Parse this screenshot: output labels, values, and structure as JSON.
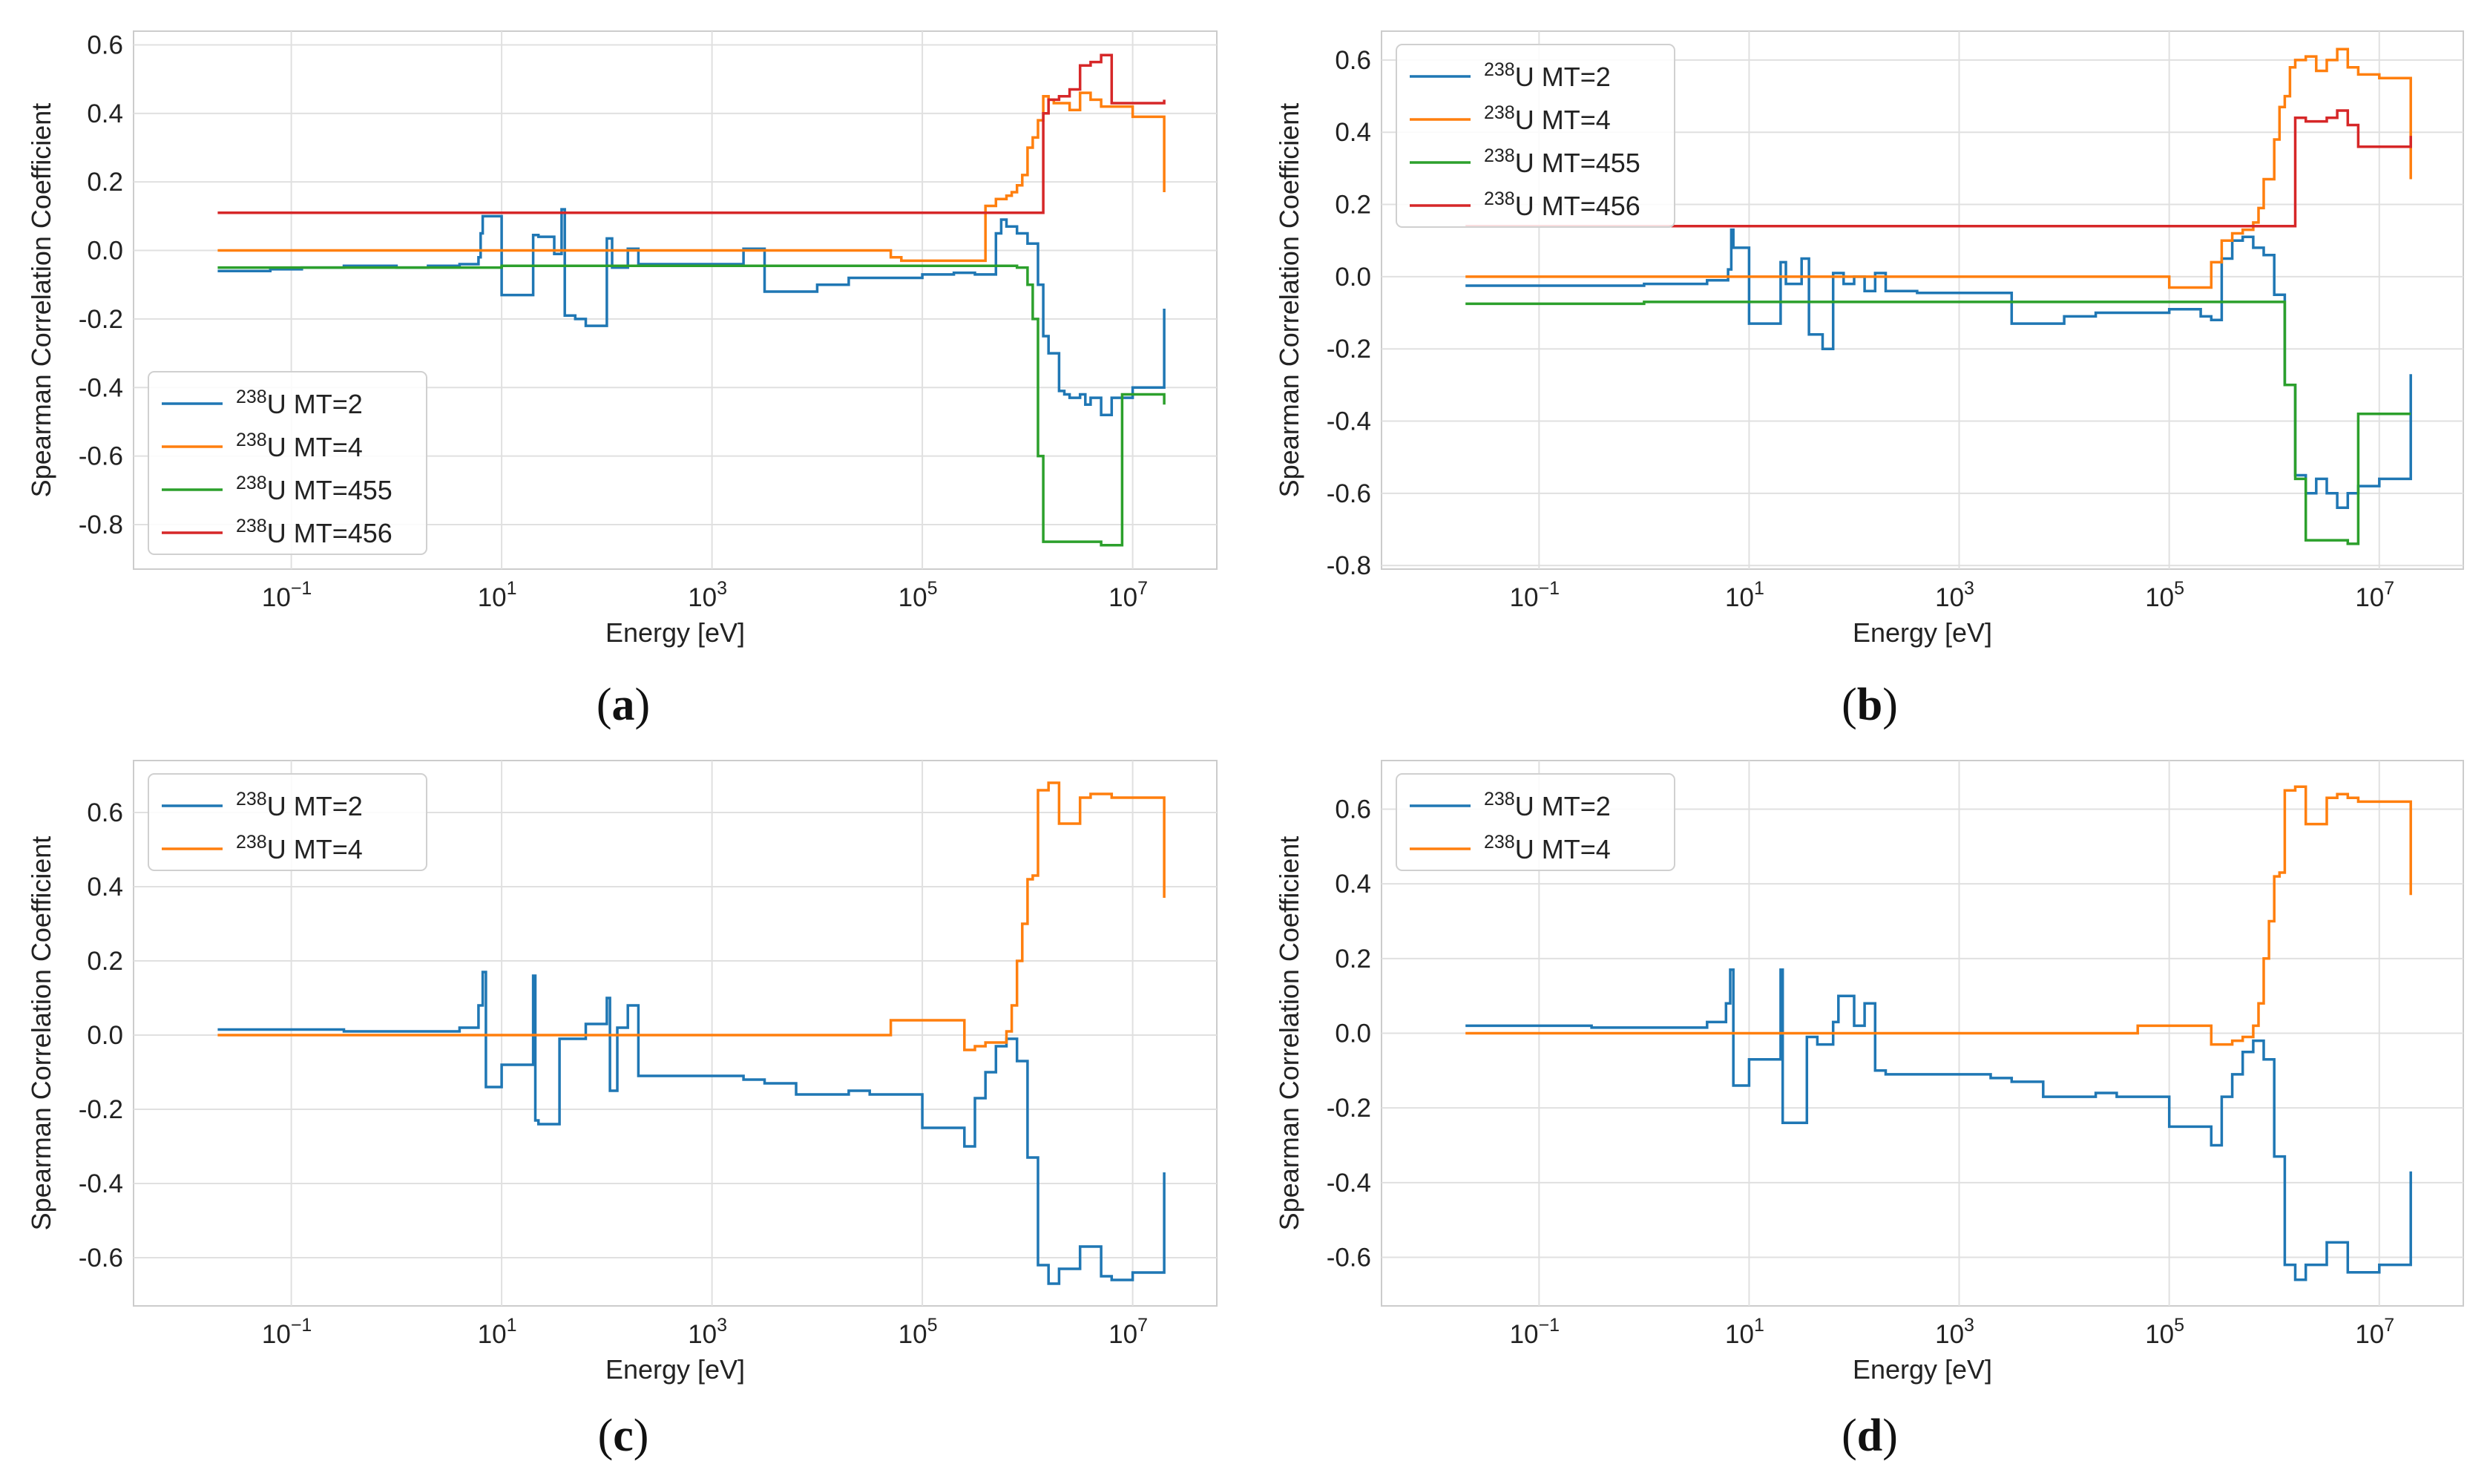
{
  "colors": {
    "blue": "#1f77b4",
    "orange": "#ff7f0e",
    "green": "#2ca02c",
    "red": "#d62728"
  },
  "chart_data": [
    {
      "type": "line",
      "caption": {
        "letter": "a"
      },
      "xlabel": "Energy [eV]",
      "ylabel": "Spearman Correlation Coefficient",
      "xscale": "log",
      "xlim_log10": [
        -2.5,
        7.8
      ],
      "ylim": [
        -0.93,
        0.64
      ],
      "yticks": [
        "0.6",
        "0.4",
        "0.2",
        "0.0",
        "-0.2",
        "-0.4",
        "-0.6",
        "-0.8"
      ],
      "xticks": [
        {
          "base": "10",
          "exp": "−1"
        },
        {
          "base": "10",
          "exp": "1"
        },
        {
          "base": "10",
          "exp": "3"
        },
        {
          "base": "10",
          "exp": "5"
        },
        {
          "base": "10",
          "exp": "7"
        }
      ],
      "legend": {
        "placement": "lower-left"
      },
      "series": [
        {
          "name": "MT=2",
          "iso": "238",
          "elem": "U",
          "color": "blue",
          "x_log10": [
            -1.7,
            -1.2,
            -0.9,
            -0.5,
            0,
            0.3,
            0.6,
            0.78,
            0.8,
            0.82,
            1.0,
            1.3,
            1.35,
            1.5,
            1.57,
            1.6,
            1.7,
            1.8,
            2.0,
            2.05,
            2.2,
            2.3,
            3.3,
            3.5,
            4.0,
            4.3,
            5.0,
            5.3,
            5.4,
            5.5,
            5.7,
            5.75,
            5.8,
            5.9,
            6.0,
            6.1,
            6.15,
            6.2,
            6.3,
            6.35,
            6.4,
            6.5,
            6.55,
            6.6,
            6.7,
            6.8,
            7.0,
            7.3
          ],
          "y": [
            -0.06,
            -0.055,
            -0.05,
            -0.045,
            -0.05,
            -0.045,
            -0.04,
            -0.02,
            0.05,
            0.1,
            -0.13,
            0.045,
            0.04,
            -0.01,
            0.12,
            -0.19,
            -0.2,
            -0.22,
            0.035,
            -0.05,
            0.005,
            -0.04,
            0.005,
            -0.12,
            -0.1,
            -0.08,
            -0.07,
            -0.065,
            -0.065,
            -0.07,
            0.05,
            0.09,
            0.07,
            0.05,
            0.02,
            -0.1,
            -0.25,
            -0.3,
            -0.41,
            -0.42,
            -0.43,
            -0.42,
            -0.45,
            -0.43,
            -0.48,
            -0.43,
            -0.4,
            -0.17
          ]
        },
        {
          "name": "MT=4",
          "iso": "238",
          "elem": "U",
          "color": "orange",
          "x_log10": [
            -1.7,
            4.7,
            4.8,
            5.1,
            5.5,
            5.6,
            5.7,
            5.8,
            5.85,
            5.9,
            5.95,
            6.0,
            6.05,
            6.1,
            6.15,
            6.2,
            6.25,
            6.3,
            6.4,
            6.5,
            6.6,
            6.7,
            6.8,
            7.0,
            7.3
          ],
          "y": [
            0,
            -0.02,
            -0.03,
            -0.03,
            -0.03,
            0.13,
            0.15,
            0.16,
            0.17,
            0.19,
            0.22,
            0.3,
            0.33,
            0.38,
            0.45,
            0.44,
            0.43,
            0.43,
            0.41,
            0.46,
            0.44,
            0.42,
            0.42,
            0.39,
            0.17
          ]
        },
        {
          "name": "MT=455",
          "iso": "238",
          "elem": "U",
          "color": "green",
          "x_log10": [
            -1.7,
            0.5,
            1.0,
            3.0,
            5.0,
            5.3,
            5.8,
            5.9,
            6.0,
            6.05,
            6.1,
            6.15,
            6.2,
            6.3,
            6.5,
            6.7,
            6.9,
            7.0,
            7.3
          ],
          "y": [
            -0.05,
            -0.05,
            -0.045,
            -0.045,
            -0.045,
            -0.045,
            -0.045,
            -0.05,
            -0.1,
            -0.2,
            -0.6,
            -0.85,
            -0.85,
            -0.85,
            -0.85,
            -0.86,
            -0.42,
            -0.42,
            -0.45
          ]
        },
        {
          "name": "MT=456",
          "iso": "238",
          "elem": "U",
          "color": "red",
          "x_log10": [
            -1.7,
            6.1,
            6.15,
            6.2,
            6.3,
            6.4,
            6.5,
            6.6,
            6.7,
            6.8,
            7.0,
            7.3
          ],
          "y": [
            0.11,
            0.11,
            0.4,
            0.44,
            0.45,
            0.47,
            0.54,
            0.55,
            0.57,
            0.43,
            0.43,
            0.44
          ]
        }
      ]
    },
    {
      "type": "line",
      "caption": {
        "letter": "b"
      },
      "xlabel": "Energy [eV]",
      "ylabel": "Spearman Correlation Coefficient",
      "xscale": "log",
      "xlim_log10": [
        -2.5,
        7.8
      ],
      "ylim": [
        -0.81,
        0.68
      ],
      "yticks": [
        "0.6",
        "0.4",
        "0.2",
        "0.0",
        "-0.2",
        "-0.4",
        "-0.6",
        "-0.8"
      ],
      "xticks": [
        {
          "base": "10",
          "exp": "−1"
        },
        {
          "base": "10",
          "exp": "1"
        },
        {
          "base": "10",
          "exp": "3"
        },
        {
          "base": "10",
          "exp": "5"
        },
        {
          "base": "10",
          "exp": "7"
        }
      ],
      "legend": {
        "placement": "upper-left"
      },
      "series": [
        {
          "name": "MT=2",
          "iso": "238",
          "elem": "U",
          "color": "blue",
          "x_log10": [
            -1.7,
            -1.0,
            0,
            0.3,
            0.6,
            0.8,
            0.83,
            0.85,
            1.0,
            1.3,
            1.35,
            1.5,
            1.57,
            1.65,
            1.7,
            1.8,
            1.9,
            2.0,
            2.1,
            2.2,
            2.3,
            2.6,
            3.5,
            4.0,
            4.3,
            5.0,
            5.2,
            5.3,
            5.4,
            5.5,
            5.6,
            5.7,
            5.8,
            5.9,
            6.0,
            6.1,
            6.2,
            6.3,
            6.4,
            6.5,
            6.6,
            6.7,
            6.8,
            7.0,
            7.3
          ],
          "y": [
            -0.025,
            -0.025,
            -0.02,
            -0.02,
            -0.01,
            0.02,
            0.13,
            0.08,
            -0.13,
            0.04,
            -0.02,
            0.05,
            -0.16,
            -0.16,
            -0.2,
            0.01,
            -0.02,
            0,
            -0.04,
            0.01,
            -0.04,
            -0.045,
            -0.13,
            -0.11,
            -0.1,
            -0.09,
            -0.09,
            -0.11,
            -0.12,
            0.05,
            0.1,
            0.11,
            0.08,
            0.06,
            -0.05,
            -0.3,
            -0.55,
            -0.6,
            -0.56,
            -0.6,
            -0.64,
            -0.6,
            -0.58,
            -0.56,
            -0.27
          ]
        },
        {
          "name": "MT=4",
          "iso": "238",
          "elem": "U",
          "color": "orange",
          "x_log10": [
            -1.7,
            4.7,
            5.0,
            5.3,
            5.4,
            5.5,
            5.6,
            5.7,
            5.8,
            5.85,
            5.9,
            6.0,
            6.05,
            6.1,
            6.15,
            6.2,
            6.3,
            6.4,
            6.5,
            6.6,
            6.7,
            6.8,
            7.0,
            7.3
          ],
          "y": [
            0,
            0,
            -0.03,
            -0.03,
            0.04,
            0.1,
            0.12,
            0.13,
            0.15,
            0.19,
            0.27,
            0.38,
            0.47,
            0.5,
            0.58,
            0.6,
            0.61,
            0.57,
            0.6,
            0.63,
            0.58,
            0.56,
            0.55,
            0.27
          ]
        },
        {
          "name": "MT=455",
          "iso": "238",
          "elem": "U",
          "color": "green",
          "x_log10": [
            -1.7,
            0,
            1.0,
            3.0,
            5.0,
            5.5,
            6.0,
            6.1,
            6.2,
            6.3,
            6.5,
            6.7,
            6.8,
            7.0,
            7.3
          ],
          "y": [
            -0.075,
            -0.07,
            -0.07,
            -0.07,
            -0.07,
            -0.07,
            -0.07,
            -0.3,
            -0.56,
            -0.73,
            -0.73,
            -0.74,
            -0.38,
            -0.38,
            -0.38
          ]
        },
        {
          "name": "MT=456",
          "iso": "238",
          "elem": "U",
          "color": "red",
          "x_log10": [
            -1.7,
            6.1,
            6.2,
            6.3,
            6.4,
            6.5,
            6.6,
            6.7,
            6.8,
            7.0,
            7.3
          ],
          "y": [
            0.14,
            0.14,
            0.44,
            0.43,
            0.43,
            0.44,
            0.46,
            0.42,
            0.36,
            0.36,
            0.39
          ]
        }
      ]
    },
    {
      "type": "line",
      "caption": {
        "letter": "c"
      },
      "xlabel": "Energy [eV]",
      "ylabel": "Spearman Correlation Coefficient",
      "xscale": "log",
      "xlim_log10": [
        -2.5,
        7.8
      ],
      "ylim": [
        -0.73,
        0.74
      ],
      "yticks": [
        "0.6",
        "0.4",
        "0.2",
        "0.0",
        "-0.2",
        "-0.4",
        "-0.6"
      ],
      "xticks": [
        {
          "base": "10",
          "exp": "−1"
        },
        {
          "base": "10",
          "exp": "1"
        },
        {
          "base": "10",
          "exp": "3"
        },
        {
          "base": "10",
          "exp": "5"
        },
        {
          "base": "10",
          "exp": "7"
        }
      ],
      "legend": {
        "placement": "upper-left"
      },
      "series": [
        {
          "name": "MT=2",
          "iso": "238",
          "elem": "U",
          "color": "blue",
          "x_log10": [
            -1.7,
            -0.5,
            0,
            0.6,
            0.78,
            0.82,
            0.85,
            1.0,
            1.3,
            1.32,
            1.35,
            1.55,
            1.6,
            1.8,
            2.0,
            2.03,
            2.1,
            2.2,
            2.3,
            3.3,
            3.5,
            3.8,
            4.3,
            4.5,
            5.0,
            5.3,
            5.4,
            5.5,
            5.6,
            5.7,
            5.8,
            5.9,
            6.0,
            6.1,
            6.2,
            6.3,
            6.5,
            6.7,
            6.8,
            7.0,
            7.3
          ],
          "y": [
            0.015,
            0.01,
            0.01,
            0.02,
            0.08,
            0.17,
            -0.14,
            -0.08,
            0.16,
            -0.23,
            -0.24,
            -0.01,
            -0.01,
            0.03,
            0.1,
            -0.15,
            0.02,
            0.08,
            -0.11,
            -0.12,
            -0.13,
            -0.16,
            -0.15,
            -0.16,
            -0.25,
            -0.25,
            -0.3,
            -0.17,
            -0.1,
            -0.03,
            -0.01,
            -0.07,
            -0.33,
            -0.62,
            -0.67,
            -0.63,
            -0.57,
            -0.65,
            -0.66,
            -0.64,
            -0.37
          ]
        },
        {
          "name": "MT=4",
          "iso": "238",
          "elem": "U",
          "color": "orange",
          "x_log10": [
            -1.7,
            4.7,
            5.3,
            5.4,
            5.5,
            5.6,
            5.7,
            5.8,
            5.85,
            5.9,
            5.95,
            6.0,
            6.05,
            6.1,
            6.2,
            6.3,
            6.5,
            6.6,
            6.7,
            6.8,
            7.0,
            7.3
          ],
          "y": [
            0,
            0.04,
            0.04,
            -0.04,
            -0.03,
            -0.02,
            -0.02,
            0.01,
            0.08,
            0.2,
            0.3,
            0.42,
            0.43,
            0.66,
            0.68,
            0.57,
            0.64,
            0.65,
            0.65,
            0.64,
            0.64,
            0.37
          ]
        }
      ]
    },
    {
      "type": "line",
      "caption": {
        "letter": "d"
      },
      "xlabel": "Energy [eV]",
      "ylabel": "Spearman Correlation Coefficient",
      "xscale": "log",
      "xlim_log10": [
        -2.5,
        7.8
      ],
      "ylim": [
        -0.73,
        0.73
      ],
      "yticks": [
        "0.6",
        "0.4",
        "0.2",
        "0.0",
        "-0.2",
        "-0.4",
        "-0.6"
      ],
      "xticks": [
        {
          "base": "10",
          "exp": "−1"
        },
        {
          "base": "10",
          "exp": "1"
        },
        {
          "base": "10",
          "exp": "3"
        },
        {
          "base": "10",
          "exp": "5"
        },
        {
          "base": "10",
          "exp": "7"
        }
      ],
      "legend": {
        "placement": "upper-left"
      },
      "series": [
        {
          "name": "MT=2",
          "iso": "238",
          "elem": "U",
          "color": "blue",
          "x_log10": [
            -1.7,
            -0.5,
            0,
            0.6,
            0.78,
            0.82,
            0.85,
            1.0,
            1.3,
            1.32,
            1.35,
            1.55,
            1.65,
            1.8,
            1.85,
            2.0,
            2.1,
            2.2,
            2.3,
            3.3,
            3.5,
            3.8,
            4.3,
            4.5,
            5.0,
            5.3,
            5.4,
            5.5,
            5.6,
            5.7,
            5.8,
            5.9,
            6.0,
            6.1,
            6.2,
            6.3,
            6.5,
            6.7,
            6.8,
            7.0,
            7.3
          ],
          "y": [
            0.02,
            0.015,
            0.015,
            0.03,
            0.08,
            0.17,
            -0.14,
            -0.07,
            0.17,
            -0.24,
            -0.24,
            -0.01,
            -0.03,
            0.03,
            0.1,
            0.02,
            0.08,
            -0.1,
            -0.11,
            -0.12,
            -0.13,
            -0.17,
            -0.16,
            -0.17,
            -0.25,
            -0.25,
            -0.3,
            -0.17,
            -0.11,
            -0.05,
            -0.02,
            -0.07,
            -0.33,
            -0.62,
            -0.66,
            -0.62,
            -0.56,
            -0.64,
            -0.64,
            -0.62,
            -0.37
          ]
        },
        {
          "name": "MT=4",
          "iso": "238",
          "elem": "U",
          "color": "orange",
          "x_log10": [
            -1.7,
            4.7,
            5.3,
            5.4,
            5.5,
            5.6,
            5.7,
            5.8,
            5.85,
            5.9,
            5.95,
            6.0,
            6.05,
            6.1,
            6.2,
            6.3,
            6.5,
            6.6,
            6.7,
            6.8,
            7.0,
            7.3
          ],
          "y": [
            0,
            0.02,
            0.02,
            -0.03,
            -0.03,
            -0.02,
            -0.01,
            0.02,
            0.08,
            0.2,
            0.3,
            0.42,
            0.43,
            0.65,
            0.66,
            0.56,
            0.63,
            0.64,
            0.63,
            0.62,
            0.62,
            0.37
          ]
        }
      ]
    }
  ]
}
